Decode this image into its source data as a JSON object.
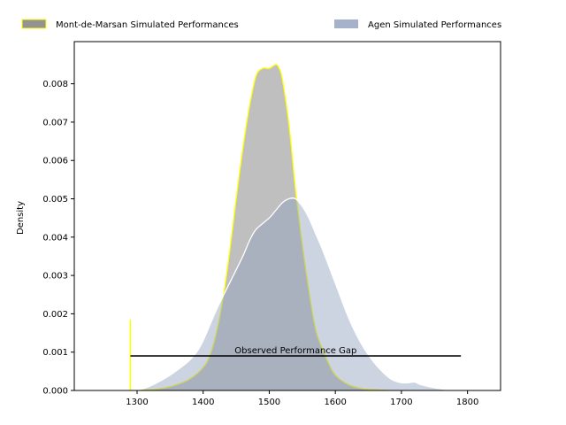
{
  "chart_data": {
    "type": "area",
    "title": "",
    "xlabel": "",
    "ylabel": "Density",
    "xlim": [
      1205,
      1850
    ],
    "ylim": [
      0,
      0.0091
    ],
    "xticks": [
      1300,
      1400,
      1500,
      1600,
      1700,
      1800
    ],
    "yticks": [
      0.0,
      0.001,
      0.002,
      0.003,
      0.004,
      0.005,
      0.006,
      0.007,
      0.008
    ],
    "ytick_format": 3,
    "legend_position": "top, outside, 2 columns",
    "series": [
      {
        "name": "Mont-de-Marsan Simulated Performances",
        "fill": "#808080",
        "fill_opacity": 0.5,
        "stroke": "#ffff00",
        "x": [
          1290,
          1320,
          1340,
          1360,
          1380,
          1400,
          1410,
          1420,
          1430,
          1440,
          1450,
          1460,
          1470,
          1480,
          1490,
          1500,
          1510,
          1515,
          1520,
          1530,
          1540,
          1550,
          1560,
          1570,
          1580,
          1590,
          1600,
          1620,
          1640,
          1660,
          1680
        ],
        "y": [
          0.0,
          2e-05,
          6e-05,
          0.00015,
          0.0003,
          0.0006,
          0.0009,
          0.0015,
          0.0024,
          0.0036,
          0.005,
          0.0063,
          0.0074,
          0.0082,
          0.0084,
          0.0084,
          0.0085,
          0.0084,
          0.0081,
          0.0069,
          0.0052,
          0.0038,
          0.0026,
          0.0016,
          0.0011,
          0.0007,
          0.0004,
          0.00015,
          5e-05,
          2e-05,
          0.0
        ]
      },
      {
        "name": "Agen Simulated Performances",
        "fill": "#8f9fbc",
        "fill_opacity": 0.45,
        "stroke": "#ffffff",
        "x": [
          1290,
          1310,
          1330,
          1350,
          1370,
          1380,
          1390,
          1400,
          1420,
          1440,
          1460,
          1470,
          1480,
          1500,
          1510,
          1520,
          1530,
          1540,
          1550,
          1560,
          1570,
          1580,
          1600,
          1620,
          1640,
          1660,
          1680,
          1690,
          1700,
          1710,
          1720,
          1730,
          1750,
          1770,
          1790
        ],
        "y": [
          0.0,
          5e-05,
          0.0002,
          0.0004,
          0.00065,
          0.0008,
          0.001,
          0.0013,
          0.0021,
          0.0028,
          0.0035,
          0.0039,
          0.0042,
          0.0045,
          0.0047,
          0.0049,
          0.005,
          0.005,
          0.0048,
          0.0045,
          0.0041,
          0.0037,
          0.0028,
          0.0019,
          0.0012,
          0.0007,
          0.00035,
          0.00025,
          0.0002,
          0.0002,
          0.00022,
          0.00015,
          7e-05,
          2e-05,
          0.0
        ]
      }
    ],
    "vertical_line": {
      "x": 1290,
      "y_start": 0.0,
      "y_end": 0.00185,
      "color": "#ffff00"
    },
    "gap_line": {
      "x_start": 1290,
      "x_end": 1790,
      "y": 0.0009,
      "color": "#000000"
    },
    "annotations": [
      {
        "text": "Observed Performance Gap",
        "x": 1540,
        "y": 0.0009
      }
    ]
  }
}
